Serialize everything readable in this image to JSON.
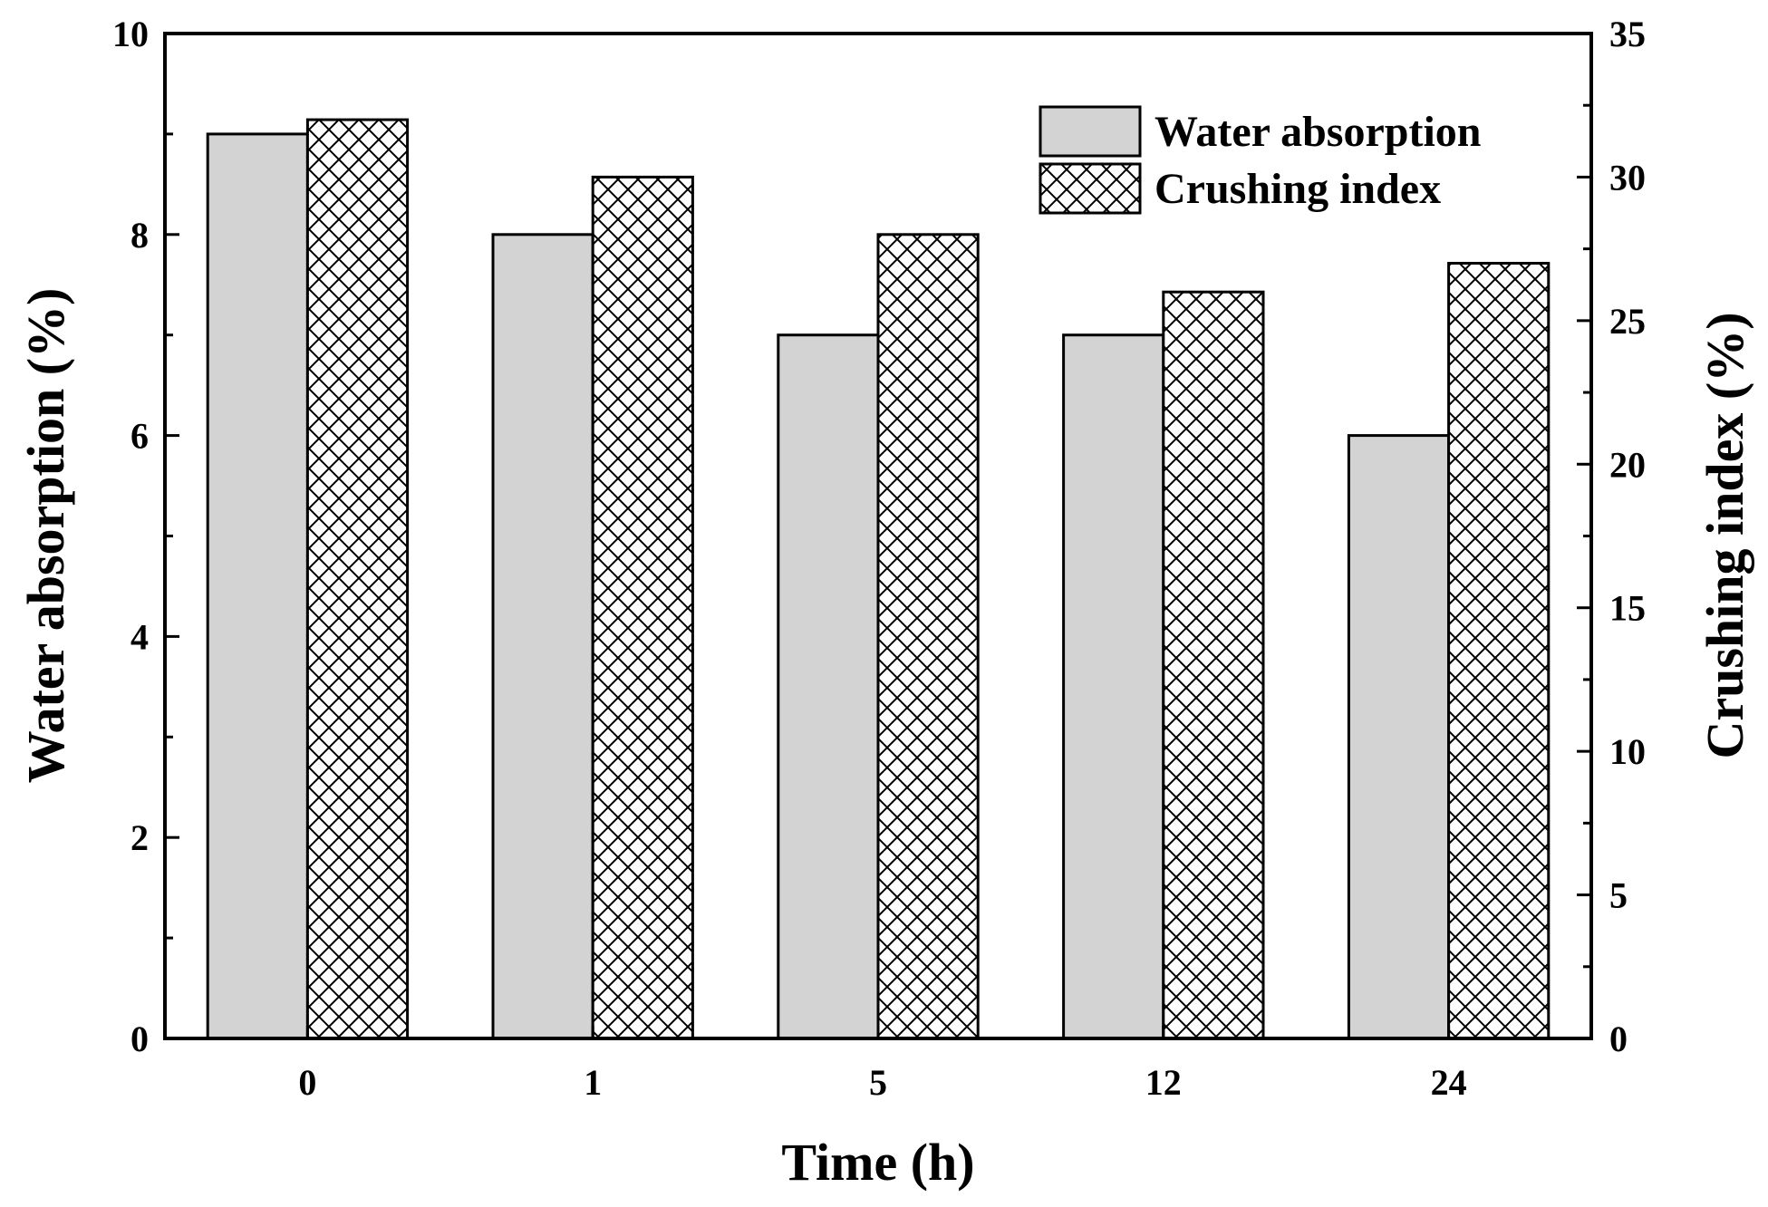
{
  "chart_data": {
    "type": "bar",
    "categories": [
      "0",
      "1",
      "5",
      "12",
      "24"
    ],
    "series": [
      {
        "name": "Water absorption",
        "axis": "left",
        "fill": "#d3d3d3",
        "pattern": "solid",
        "values": [
          9,
          8,
          7,
          7,
          6
        ]
      },
      {
        "name": "Crushing index",
        "axis": "right",
        "fill": "#ffffff",
        "pattern": "crosshatch",
        "values": [
          32,
          30,
          28,
          26,
          27
        ]
      }
    ],
    "xlabel": "Time (h)",
    "ylabel_left": "Water absorption (%)",
    "ylabel_right": "Crushing index (%)",
    "ylim_left": [
      0,
      10
    ],
    "ylim_right": [
      0,
      35
    ],
    "yticks_left": [
      0,
      2,
      4,
      6,
      8,
      10
    ],
    "yticks_right": [
      0,
      5,
      10,
      15,
      20,
      25,
      30,
      35
    ],
    "legend_position": "top-right",
    "grid": false
  }
}
